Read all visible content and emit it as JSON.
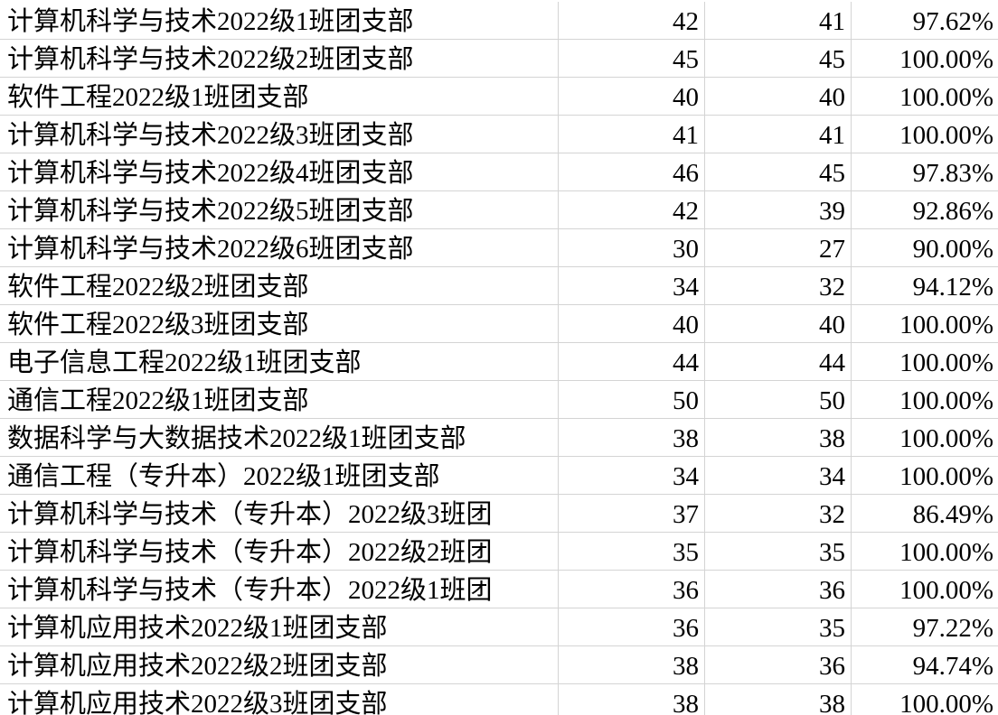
{
  "table": {
    "rows": [
      [
        "计算机科学与技术2022级1班团支部",
        42,
        41,
        "97.62%"
      ],
      [
        "计算机科学与技术2022级2班团支部",
        45,
        45,
        "100.00%"
      ],
      [
        "软件工程2022级1班团支部",
        40,
        40,
        "100.00%"
      ],
      [
        "计算机科学与技术2022级3班团支部",
        41,
        41,
        "100.00%"
      ],
      [
        "计算机科学与技术2022级4班团支部",
        46,
        45,
        "97.83%"
      ],
      [
        "计算机科学与技术2022级5班团支部",
        42,
        39,
        "92.86%"
      ],
      [
        "计算机科学与技术2022级6班团支部",
        30,
        27,
        "90.00%"
      ],
      [
        "软件工程2022级2班团支部",
        34,
        32,
        "94.12%"
      ],
      [
        "软件工程2022级3班团支部",
        40,
        40,
        "100.00%"
      ],
      [
        "电子信息工程2022级1班团支部",
        44,
        44,
        "100.00%"
      ],
      [
        "通信工程2022级1班团支部",
        50,
        50,
        "100.00%"
      ],
      [
        "数据科学与大数据技术2022级1班团支部",
        38,
        38,
        "100.00%"
      ],
      [
        "通信工程（专升本）2022级1班团支部",
        34,
        34,
        "100.00%"
      ],
      [
        "计算机科学与技术（专升本）2022级3班团",
        37,
        32,
        "86.49%"
      ],
      [
        "计算机科学与技术（专升本）2022级2班团",
        35,
        35,
        "100.00%"
      ],
      [
        "计算机科学与技术（专升本）2022级1班团",
        36,
        36,
        "100.00%"
      ],
      [
        "计算机应用技术2022级1班团支部",
        36,
        35,
        "97.22%"
      ],
      [
        "计算机应用技术2022级2班团支部",
        38,
        36,
        "94.74%"
      ],
      [
        "计算机应用技术2022级3班团支部",
        38,
        38,
        "100.00%"
      ]
    ]
  }
}
